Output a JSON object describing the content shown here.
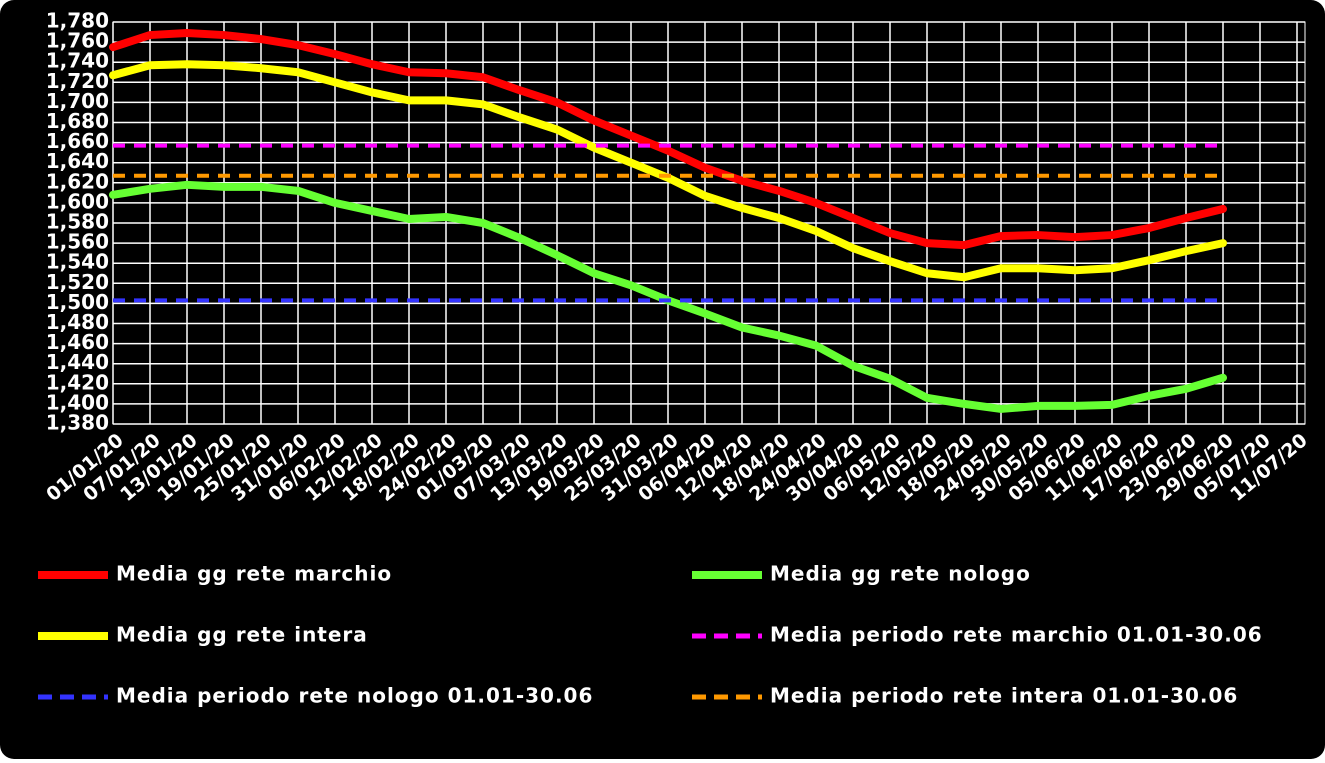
{
  "chart_data": {
    "type": "line",
    "categories": [
      "01/01/20",
      "07/01/20",
      "13/01/20",
      "19/01/20",
      "25/01/20",
      "31/01/20",
      "06/02/20",
      "12/02/20",
      "18/02/20",
      "24/02/20",
      "01/03/20",
      "07/03/20",
      "13/03/20",
      "19/03/20",
      "25/03/20",
      "31/03/20",
      "06/04/20",
      "12/04/20",
      "18/04/20",
      "24/04/20",
      "30/04/20",
      "06/05/20",
      "12/05/20",
      "18/05/20",
      "24/05/20",
      "30/05/20",
      "05/06/20",
      "11/06/20",
      "17/06/20",
      "23/06/20",
      "29/06/20",
      "05/07/20",
      "11/07/20"
    ],
    "series": [
      {
        "name": "Media gg rete marchio",
        "color": "#ff0000",
        "values": [
          1755,
          1767,
          1769,
          1767,
          1763,
          1757,
          1748,
          1738,
          1730,
          1729,
          1725,
          1712,
          1700,
          1682,
          1667,
          1652,
          1635,
          1622,
          1612,
          1600,
          1585,
          1570,
          1560,
          1558,
          1567,
          1568,
          1566,
          1568,
          1575,
          1585,
          1594,
          null,
          null
        ]
      },
      {
        "name": "Media gg rete nologo",
        "color": "#66ff33",
        "values": [
          1608,
          1614,
          1618,
          1616,
          1616,
          1612,
          1600,
          1592,
          1584,
          1586,
          1580,
          1565,
          1548,
          1530,
          1518,
          1503,
          1490,
          1476,
          1468,
          1458,
          1438,
          1425,
          1406,
          1400,
          1395,
          1398,
          1398,
          1399,
          1408,
          1415,
          1426,
          null,
          null
        ]
      },
      {
        "name": "Media gg rete intera",
        "color": "#ffff00",
        "values": [
          1727,
          1737,
          1738,
          1737,
          1734,
          1730,
          1720,
          1710,
          1702,
          1702,
          1698,
          1685,
          1673,
          1655,
          1640,
          1625,
          1607,
          1595,
          1585,
          1572,
          1555,
          1542,
          1530,
          1526,
          1535,
          1535,
          1533,
          1535,
          1543,
          1552,
          1560,
          null,
          null
        ]
      },
      {
        "name": "Media periodo rete marchio 01.01-30.06",
        "color": "#ff00ff",
        "style": "dashed",
        "value": 1657
      },
      {
        "name": "Media periodo rete nologo 01.01-30.06",
        "color": "#3333ff",
        "style": "dashed",
        "value": 1503
      },
      {
        "name": "Media periodo rete intera 01.01-30.06",
        "color": "#ff9900",
        "style": "dashed",
        "value": 1627
      }
    ],
    "ylim": [
      1380,
      1780
    ],
    "yticks": [
      {
        "value": 1380,
        "label": "1,380"
      },
      {
        "value": 1400,
        "label": "1,400"
      },
      {
        "value": 1420,
        "label": "1,420"
      },
      {
        "value": 1440,
        "label": "1,440"
      },
      {
        "value": 1460,
        "label": "1,460"
      },
      {
        "value": 1480,
        "label": "1,480"
      },
      {
        "value": 1500,
        "label": "1,500"
      },
      {
        "value": 1520,
        "label": "1,520"
      },
      {
        "value": 1540,
        "label": "1,540"
      },
      {
        "value": 1560,
        "label": "1,560"
      },
      {
        "value": 1580,
        "label": "1,580"
      },
      {
        "value": 1600,
        "label": "1,600"
      },
      {
        "value": 1620,
        "label": "1,620"
      },
      {
        "value": 1640,
        "label": "1,640"
      },
      {
        "value": 1660,
        "label": "1,660"
      },
      {
        "value": 1680,
        "label": "1,680"
      },
      {
        "value": 1700,
        "label": "1,700"
      },
      {
        "value": 1720,
        "label": "1,720"
      },
      {
        "value": 1740,
        "label": "1,740"
      },
      {
        "value": 1760,
        "label": "1,760"
      },
      {
        "value": 1780,
        "label": "1,780"
      }
    ],
    "grid": true,
    "background": "#000000"
  }
}
